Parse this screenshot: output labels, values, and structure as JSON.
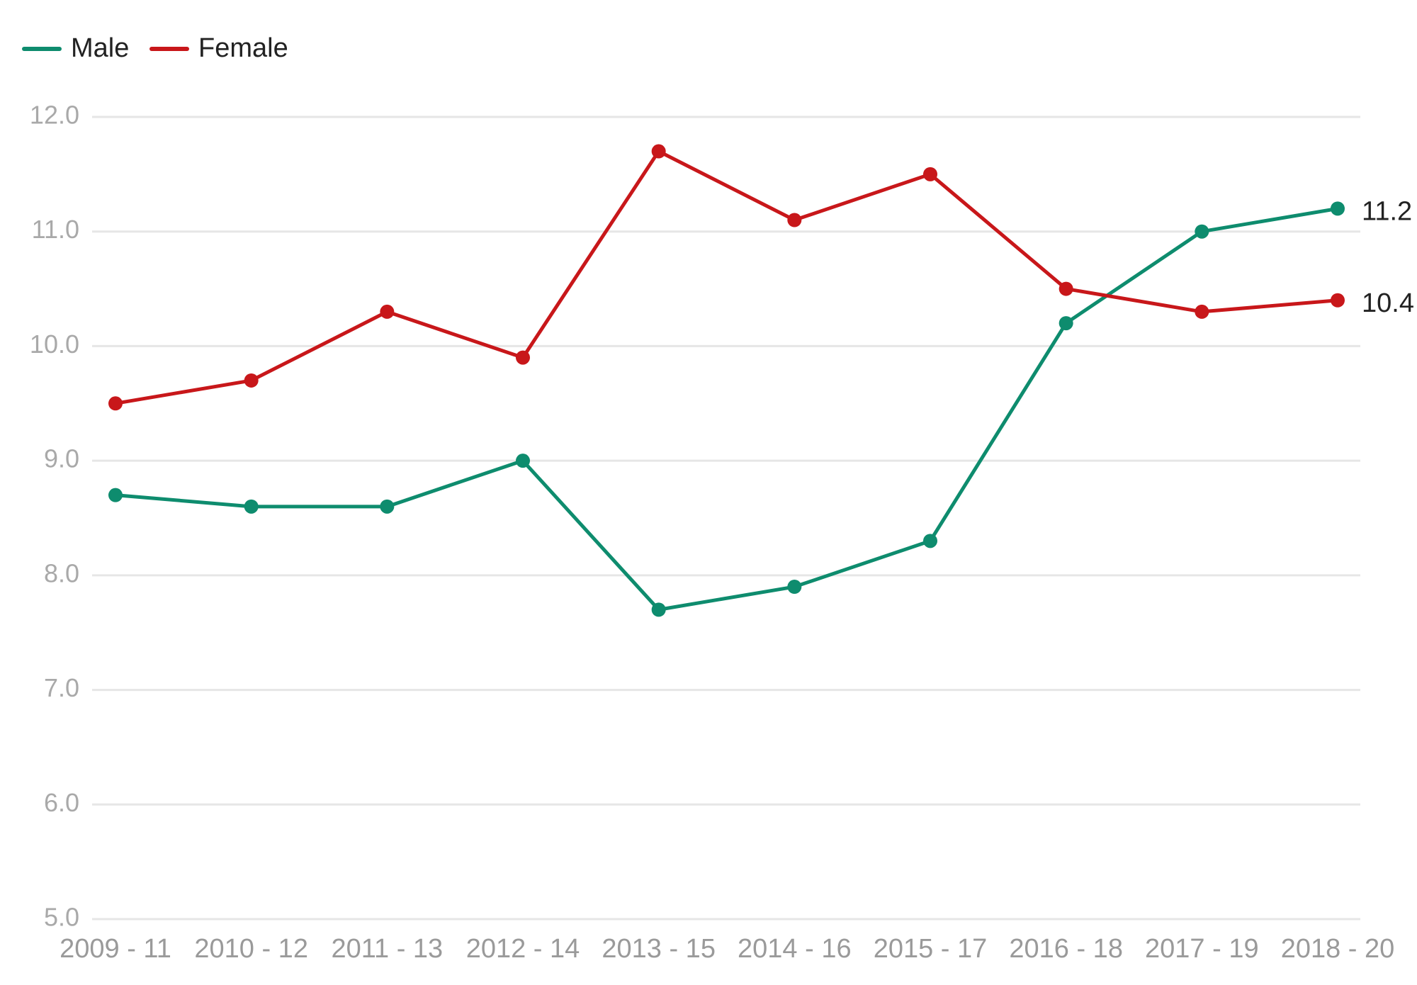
{
  "chart_data": {
    "type": "line",
    "title": "",
    "xlabel": "",
    "ylabel": "",
    "categories": [
      "2009 - 11",
      "2010 - 12",
      "2011 - 13",
      "2012 - 14",
      "2013 - 15",
      "2014 - 16",
      "2015 - 17",
      "2016 - 18",
      "2017 - 19",
      "2018 - 20"
    ],
    "series": [
      {
        "name": "Male",
        "color": "#0e8c6e",
        "values": [
          8.7,
          8.6,
          8.6,
          9.0,
          7.7,
          7.9,
          8.3,
          10.2,
          11.0,
          11.2
        ],
        "end_label": "11.2"
      },
      {
        "name": "Female",
        "color": "#c8171a",
        "values": [
          9.5,
          9.7,
          10.3,
          9.9,
          11.7,
          11.1,
          11.5,
          10.5,
          10.3,
          10.4
        ],
        "end_label": "10.4"
      }
    ],
    "ylim": [
      5.0,
      12.0
    ],
    "yticks": [
      "5.0",
      "6.0",
      "7.0",
      "8.0",
      "9.0",
      "10.0",
      "11.0",
      "12.0"
    ],
    "grid": true,
    "legend": "top-left"
  }
}
